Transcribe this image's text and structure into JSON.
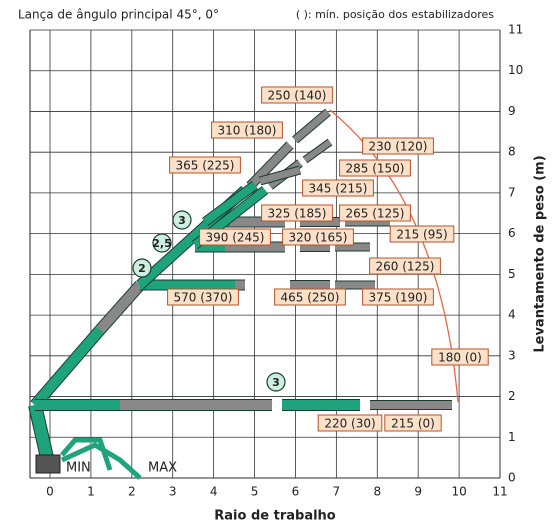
{
  "header": {
    "title": "Lança de ângulo principal 45°, 0°",
    "note": "( ): mín. posição dos estabilizadores"
  },
  "axes": {
    "x_label": "Raio de trabalho",
    "y_label": "Levantamento de peso (m)",
    "xticks": [
      0,
      1,
      2,
      3,
      4,
      5,
      6,
      7,
      8,
      9,
      10,
      11
    ],
    "yticks": [
      0,
      1,
      2,
      3,
      4,
      5,
      6,
      7,
      8,
      9,
      10,
      11
    ]
  },
  "loads": [
    "250 (140)",
    "310 (180)",
    "230 (120)",
    "285 (150)",
    "365 (225)",
    "345 (215)",
    "325 (185)",
    "265 (125)",
    "215 (95)",
    "390 (245)",
    "320 (165)",
    "260 (125)",
    "570 (370)",
    "465 (250)",
    "375 (190)",
    "180 (0)",
    "220 (30)",
    "215 (0)"
  ],
  "boom_marks": [
    "2",
    "2,5",
    "3",
    "3"
  ],
  "stabilizers": [
    "MIN",
    "MAX"
  ]
}
